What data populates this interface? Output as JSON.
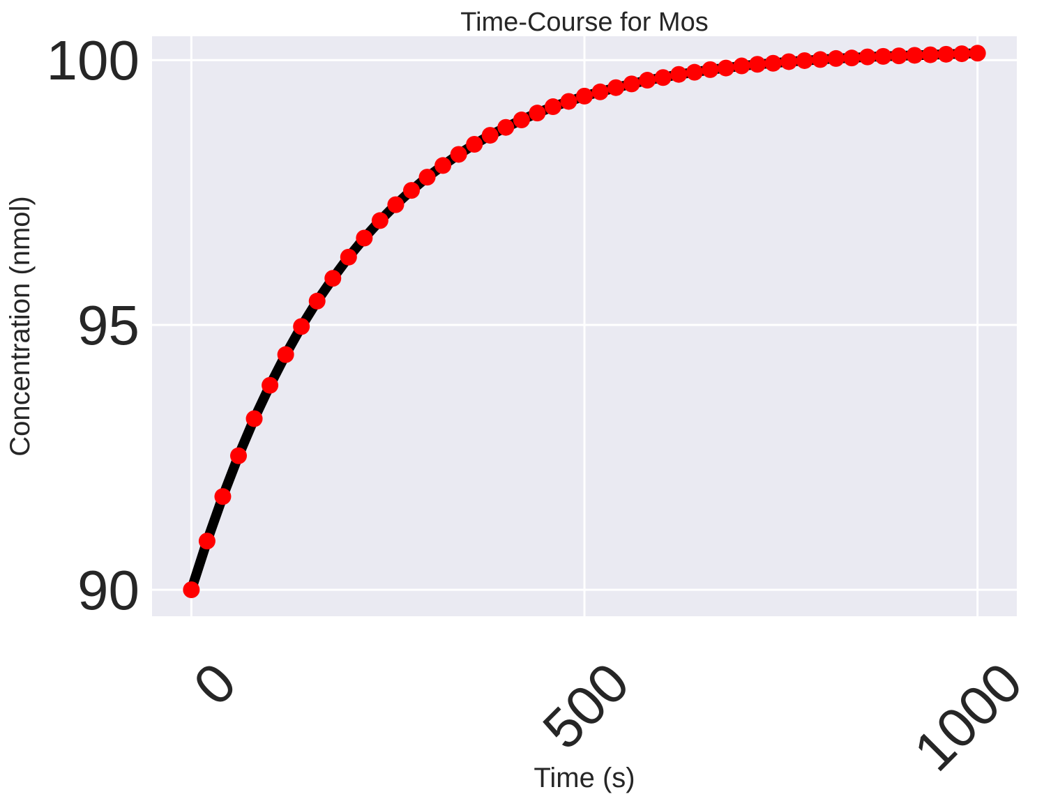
{
  "chart_data": {
    "type": "line",
    "title": "Time-Course for Mos",
    "xlabel": "Time (s)",
    "ylabel": "Concentration (nmol)",
    "xlim": [
      -50,
      1050
    ],
    "ylim": [
      89.5,
      100.45
    ],
    "x_ticks": [
      0,
      500,
      1000
    ],
    "x_tick_labels": [
      "0",
      "500",
      "1000"
    ],
    "y_ticks": [
      90,
      95,
      100
    ],
    "y_tick_labels": [
      "90",
      "95",
      "100"
    ],
    "x_tick_rotation_deg": -45,
    "grid": true,
    "legend": "none",
    "colors": {
      "background": "#eaeaf2",
      "grid": "#ffffff",
      "line": "#000000",
      "marker": "#ff0000",
      "text": "#262626"
    },
    "series": [
      {
        "style": "line",
        "x": [
          0,
          20,
          40,
          60,
          80,
          100,
          120,
          140,
          160,
          180,
          200,
          220,
          240,
          260,
          280,
          300,
          320,
          340,
          360,
          380,
          400,
          420,
          440,
          460,
          480,
          500,
          520,
          540,
          560,
          580,
          600,
          620,
          640,
          660,
          680,
          700,
          720,
          740,
          760,
          780,
          800,
          820,
          840,
          860,
          880,
          900,
          920,
          940,
          960,
          980,
          1000
        ],
        "y": [
          90.0,
          90.92,
          91.76,
          92.53,
          93.23,
          93.86,
          94.44,
          94.97,
          95.45,
          95.88,
          96.28,
          96.64,
          96.97,
          97.27,
          97.54,
          97.79,
          98.01,
          98.22,
          98.41,
          98.58,
          98.73,
          98.87,
          99.0,
          99.12,
          99.22,
          99.32,
          99.4,
          99.48,
          99.55,
          99.62,
          99.67,
          99.73,
          99.77,
          99.82,
          99.85,
          99.89,
          99.92,
          99.94,
          99.97,
          99.99,
          100.01,
          100.03,
          100.04,
          100.06,
          100.07,
          100.08,
          100.09,
          100.1,
          100.11,
          100.12,
          100.13
        ]
      },
      {
        "style": "markers",
        "x": [
          0,
          20,
          40,
          60,
          80,
          100,
          120,
          140,
          160,
          180,
          200,
          220,
          240,
          260,
          280,
          300,
          320,
          340,
          360,
          380,
          400,
          420,
          440,
          460,
          480,
          500,
          520,
          540,
          560,
          580,
          600,
          620,
          640,
          660,
          680,
          700,
          720,
          740,
          760,
          780,
          800,
          820,
          840,
          860,
          880,
          900,
          920,
          940,
          960,
          980,
          1000
        ],
        "y": [
          90.0,
          90.92,
          91.76,
          92.53,
          93.23,
          93.86,
          94.44,
          94.97,
          95.45,
          95.88,
          96.28,
          96.64,
          96.97,
          97.27,
          97.54,
          97.79,
          98.01,
          98.22,
          98.41,
          98.58,
          98.73,
          98.87,
          99.0,
          99.12,
          99.22,
          99.32,
          99.4,
          99.48,
          99.55,
          99.62,
          99.67,
          99.73,
          99.77,
          99.82,
          99.85,
          99.89,
          99.92,
          99.94,
          99.97,
          99.99,
          100.01,
          100.03,
          100.04,
          100.06,
          100.07,
          100.08,
          100.09,
          100.1,
          100.11,
          100.12,
          100.13
        ]
      }
    ]
  }
}
